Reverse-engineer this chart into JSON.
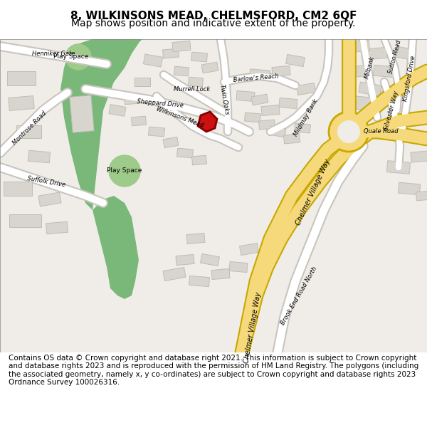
{
  "title_line1": "8, WILKINSONS MEAD, CHELMSFORD, CM2 6QF",
  "title_line2": "Map shows position and indicative extent of the property.",
  "footer_text": "Contains OS data © Crown copyright and database right 2021. This information is subject to Crown copyright and database rights 2023 and is reproduced with the permission of HM Land Registry. The polygons (including the associated geometry, namely x, y co-ordinates) are subject to Crown copyright and database rights 2023 Ordnance Survey 100026316.",
  "bg_color": "#f0ede8",
  "road_color": "#ffffff",
  "major_road_color": "#f5d97a",
  "green_area_color": "#7ab87a",
  "green_light_color": "#9eca8a",
  "building_color": "#d8d5ce",
  "building_edge_color": "#c0bdb6",
  "plot_color": "#cc1111",
  "roundabout_color": "#f5d97a",
  "title_fontsize": 11,
  "subtitle_fontsize": 10,
  "footer_fontsize": 7.5
}
